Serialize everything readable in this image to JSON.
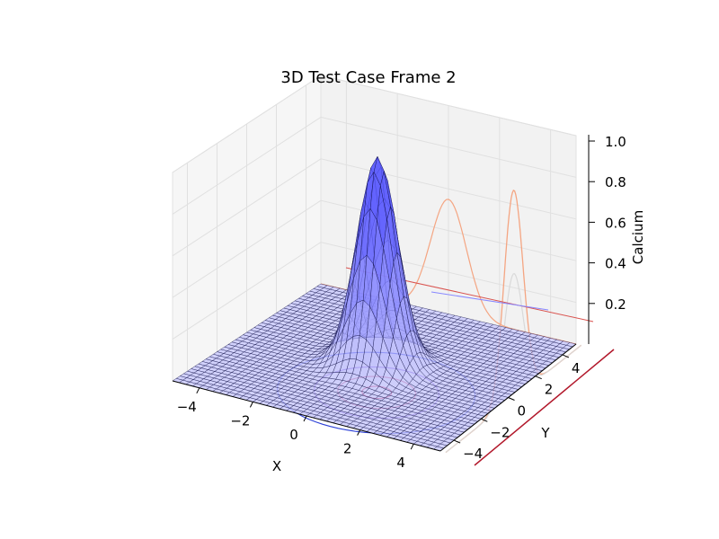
{
  "chart_data": {
    "type": "surface",
    "title": "3D Test Case Frame 2",
    "xlabel": "X",
    "ylabel": "Y",
    "zlabel": "Calcium",
    "xlim": [
      -5,
      5
    ],
    "ylim": [
      -5,
      5
    ],
    "zlim": [
      0,
      1.0
    ],
    "x_ticks": [
      "−4",
      "−2",
      "0",
      "2",
      "4"
    ],
    "y_ticks": [
      "−4",
      "−2",
      "0",
      "2",
      "4"
    ],
    "z_ticks": [
      "0.2",
      "0.4",
      "0.6",
      "0.8",
      "1.0"
    ],
    "x_tick_values": [
      -4,
      -2,
      0,
      2,
      4
    ],
    "y_tick_values": [
      -4,
      -2,
      0,
      2,
      4
    ],
    "z_tick_values": [
      0.2,
      0.4,
      0.6,
      0.8,
      1.0
    ],
    "surface": {
      "function": "gaussian",
      "peak": 1.0,
      "center": [
        0,
        0
      ],
      "sigma": 0.7,
      "face_color": "#6f6fff",
      "edge_color": "#0a0a40"
    },
    "contours": {
      "floor_levels": [
        0.1,
        0.4,
        0.7,
        0.95
      ],
      "colors": [
        "#2b3fd6",
        "#7b4fd0",
        "#c0436a",
        "#d01848"
      ]
    },
    "projections": {
      "wall_curve_color": "#f4a582",
      "wall_gray_color": "#d9d9d9",
      "side_line_colors": [
        "#d9534f",
        "#8888ff"
      ],
      "y_wall_line_color": "#b2182b"
    },
    "grid": true,
    "pane_color": "#f2f2f2"
  }
}
